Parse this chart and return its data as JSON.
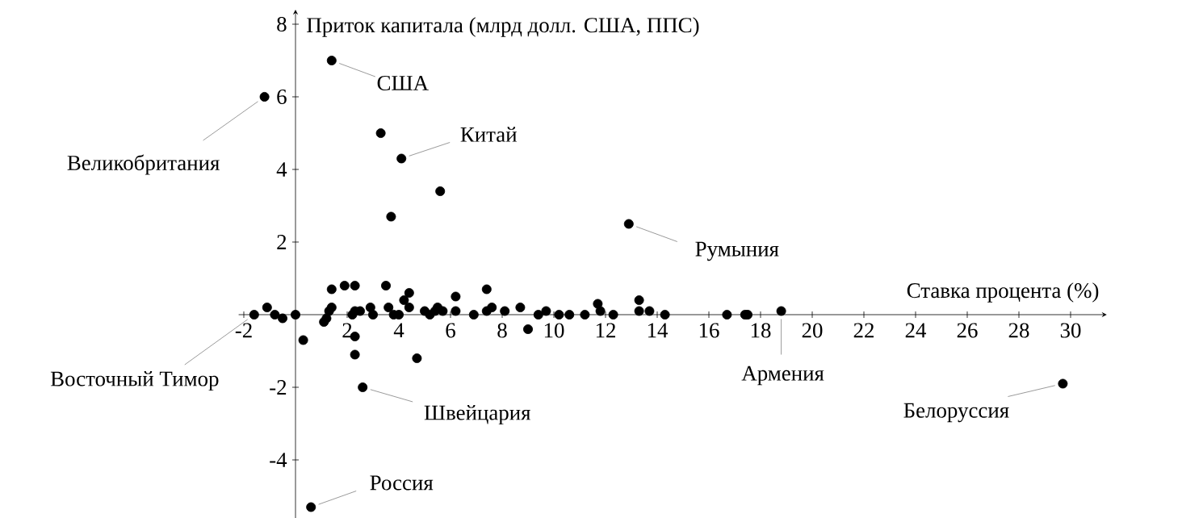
{
  "chart_data": {
    "type": "scatter",
    "xlabel": "Ставка процента (%)",
    "ylabel": "Приток капитала (млрд долл. США, ППС)",
    "xlim": [
      -2.2,
      31.4
    ],
    "ylim": [
      -5.6,
      8.4
    ],
    "xticks": [
      -2,
      2,
      4,
      6,
      8,
      10,
      12,
      14,
      16,
      18,
      20,
      22,
      24,
      26,
      28,
      30
    ],
    "yticks": [
      -4,
      -2,
      2,
      4,
      6,
      8
    ],
    "marker": "circle",
    "series": [
      {
        "color": "#000000",
        "x": [
          -1.6,
          -1.1,
          -0.8,
          -0.5,
          0.0,
          0.3,
          1.1,
          1.2,
          1.3,
          1.4,
          1.4,
          1.9,
          2.3,
          2.2,
          2.3,
          2.3,
          2.3,
          2.5,
          2.9,
          3.0,
          3.5,
          3.6,
          3.8,
          4.0,
          4.2,
          4.4,
          4.4,
          4.7,
          5.0,
          5.2,
          5.4,
          5.5,
          5.7,
          6.2,
          6.2,
          6.9,
          7.4,
          7.4,
          7.6,
          8.1,
          8.7,
          9.0,
          9.4,
          9.7,
          10.2,
          10.6,
          11.2,
          11.7,
          11.8,
          12.3,
          13.3,
          13.3,
          13.7,
          14.3,
          16.7,
          17.4,
          17.5,
          18.8,
          1.4,
          -1.2,
          3.3,
          4.1,
          5.6,
          3.7,
          12.9,
          29.7,
          2.6,
          0.6
        ],
        "values": [
          0.0,
          0.2,
          0.0,
          -0.1,
          0.0,
          -0.7,
          -0.2,
          -0.1,
          0.1,
          0.2,
          0.7,
          0.8,
          0.8,
          0.0,
          0.1,
          -0.6,
          -1.1,
          0.1,
          0.2,
          0.0,
          0.8,
          0.2,
          0.0,
          0.0,
          0.4,
          0.6,
          0.2,
          -1.2,
          0.1,
          0.0,
          0.1,
          0.2,
          0.1,
          0.5,
          0.1,
          0.0,
          0.7,
          0.1,
          0.2,
          0.1,
          0.2,
          -0.4,
          0.0,
          0.1,
          0.0,
          0.0,
          0.0,
          0.3,
          0.1,
          0.0,
          0.4,
          0.1,
          0.1,
          0.0,
          0.0,
          0.0,
          0.0,
          0.1,
          7.0,
          6.0,
          5.0,
          4.3,
          3.4,
          2.7,
          2.5,
          -1.9,
          -2.0,
          -5.3
        ]
      }
    ],
    "annotations": [
      {
        "text": "США",
        "x": 1.4,
        "y": 7.0
      },
      {
        "text": "Великобритания",
        "x": -1.2,
        "y": 6.0
      },
      {
        "text": "Китай",
        "x": 4.1,
        "y": 4.3
      },
      {
        "text": "Румыния",
        "x": 12.9,
        "y": 2.5
      },
      {
        "text": "Армения",
        "x": 18.8,
        "y": 0.1
      },
      {
        "text": "Белоруссия",
        "x": 29.7,
        "y": -1.9
      },
      {
        "text": "Швейцария",
        "x": 2.6,
        "y": -2.0
      },
      {
        "text": "Россия",
        "x": 0.6,
        "y": -5.3
      },
      {
        "text": "Восточный Тимор",
        "x": -1.6,
        "y": 0.0
      }
    ]
  }
}
